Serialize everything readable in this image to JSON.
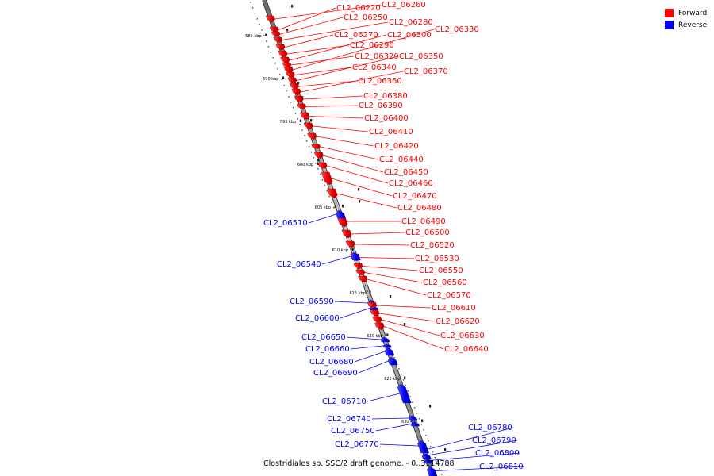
{
  "legend": {
    "forward": {
      "label": "Forward",
      "color": "#ff0000"
    },
    "reverse": {
      "label": "Reverse",
      "color": "#0000ff"
    }
  },
  "caption": "Clostridiales sp. SSC/2 draft genome. - 0..3114788",
  "axis": {
    "ticks": [
      {
        "kbp": 585,
        "label": "585 kbp"
      },
      {
        "kbp": 590,
        "label": "590 kbp"
      },
      {
        "kbp": 595,
        "label": "595 kbp"
      },
      {
        "kbp": 600,
        "label": "600 kbp"
      },
      {
        "kbp": 605,
        "label": "605 kbp"
      },
      {
        "kbp": 610,
        "label": "610 kbp"
      },
      {
        "kbp": 615,
        "label": "615 kbp"
      },
      {
        "kbp": 620,
        "label": "620 kbp"
      },
      {
        "kbp": 625,
        "label": "625 kbp"
      },
      {
        "kbp": 630,
        "label": "630 kbp"
      }
    ]
  },
  "genes": [
    {
      "id": "CL2_06220",
      "strand": "forward"
    },
    {
      "id": "CL2_06250",
      "strand": "forward"
    },
    {
      "id": "CL2_06260",
      "strand": "forward"
    },
    {
      "id": "CL2_06270",
      "strand": "forward"
    },
    {
      "id": "CL2_06280",
      "strand": "forward"
    },
    {
      "id": "CL2_06290",
      "strand": "forward"
    },
    {
      "id": "CL2_06300",
      "strand": "forward"
    },
    {
      "id": "CL2_06320",
      "strand": "forward"
    },
    {
      "id": "CL2_06330",
      "strand": "forward"
    },
    {
      "id": "CL2_06340",
      "strand": "forward"
    },
    {
      "id": "CL2_06350",
      "strand": "forward"
    },
    {
      "id": "CL2_06360",
      "strand": "forward"
    },
    {
      "id": "CL2_06370",
      "strand": "forward"
    },
    {
      "id": "CL2_06380",
      "strand": "forward"
    },
    {
      "id": "CL2_06390",
      "strand": "forward"
    },
    {
      "id": "CL2_06400",
      "strand": "forward"
    },
    {
      "id": "CL2_06410",
      "strand": "forward"
    },
    {
      "id": "CL2_06420",
      "strand": "forward"
    },
    {
      "id": "CL2_06440",
      "strand": "forward"
    },
    {
      "id": "CL2_06450",
      "strand": "forward"
    },
    {
      "id": "CL2_06460",
      "strand": "forward"
    },
    {
      "id": "CL2_06470",
      "strand": "forward"
    },
    {
      "id": "CL2_06480",
      "strand": "forward"
    },
    {
      "id": "CL2_06490",
      "strand": "forward"
    },
    {
      "id": "CL2_06500",
      "strand": "forward"
    },
    {
      "id": "CL2_06510",
      "strand": "reverse"
    },
    {
      "id": "CL2_06520",
      "strand": "forward"
    },
    {
      "id": "CL2_06530",
      "strand": "forward"
    },
    {
      "id": "CL2_06540",
      "strand": "reverse"
    },
    {
      "id": "CL2_06550",
      "strand": "forward"
    },
    {
      "id": "CL2_06560",
      "strand": "forward"
    },
    {
      "id": "CL2_06570",
      "strand": "forward"
    },
    {
      "id": "CL2_06590",
      "strand": "reverse"
    },
    {
      "id": "CL2_06600",
      "strand": "reverse"
    },
    {
      "id": "CL2_06610",
      "strand": "forward"
    },
    {
      "id": "CL2_06620",
      "strand": "forward"
    },
    {
      "id": "CL2_06630",
      "strand": "forward"
    },
    {
      "id": "CL2_06640",
      "strand": "forward"
    },
    {
      "id": "CL2_06650",
      "strand": "reverse"
    },
    {
      "id": "CL2_06660",
      "strand": "reverse"
    },
    {
      "id": "CL2_06680",
      "strand": "reverse"
    },
    {
      "id": "CL2_06690",
      "strand": "reverse"
    },
    {
      "id": "CL2_06710",
      "strand": "reverse"
    },
    {
      "id": "CL2_06740",
      "strand": "reverse"
    },
    {
      "id": "CL2_06750",
      "strand": "reverse"
    },
    {
      "id": "CL2_06770",
      "strand": "reverse"
    },
    {
      "id": "CL2_06780",
      "strand": "reverse"
    },
    {
      "id": "CL2_06790",
      "strand": "reverse"
    },
    {
      "id": "CL2_06800",
      "strand": "reverse"
    },
    {
      "id": "CL2_06810",
      "strand": "reverse"
    }
  ]
}
